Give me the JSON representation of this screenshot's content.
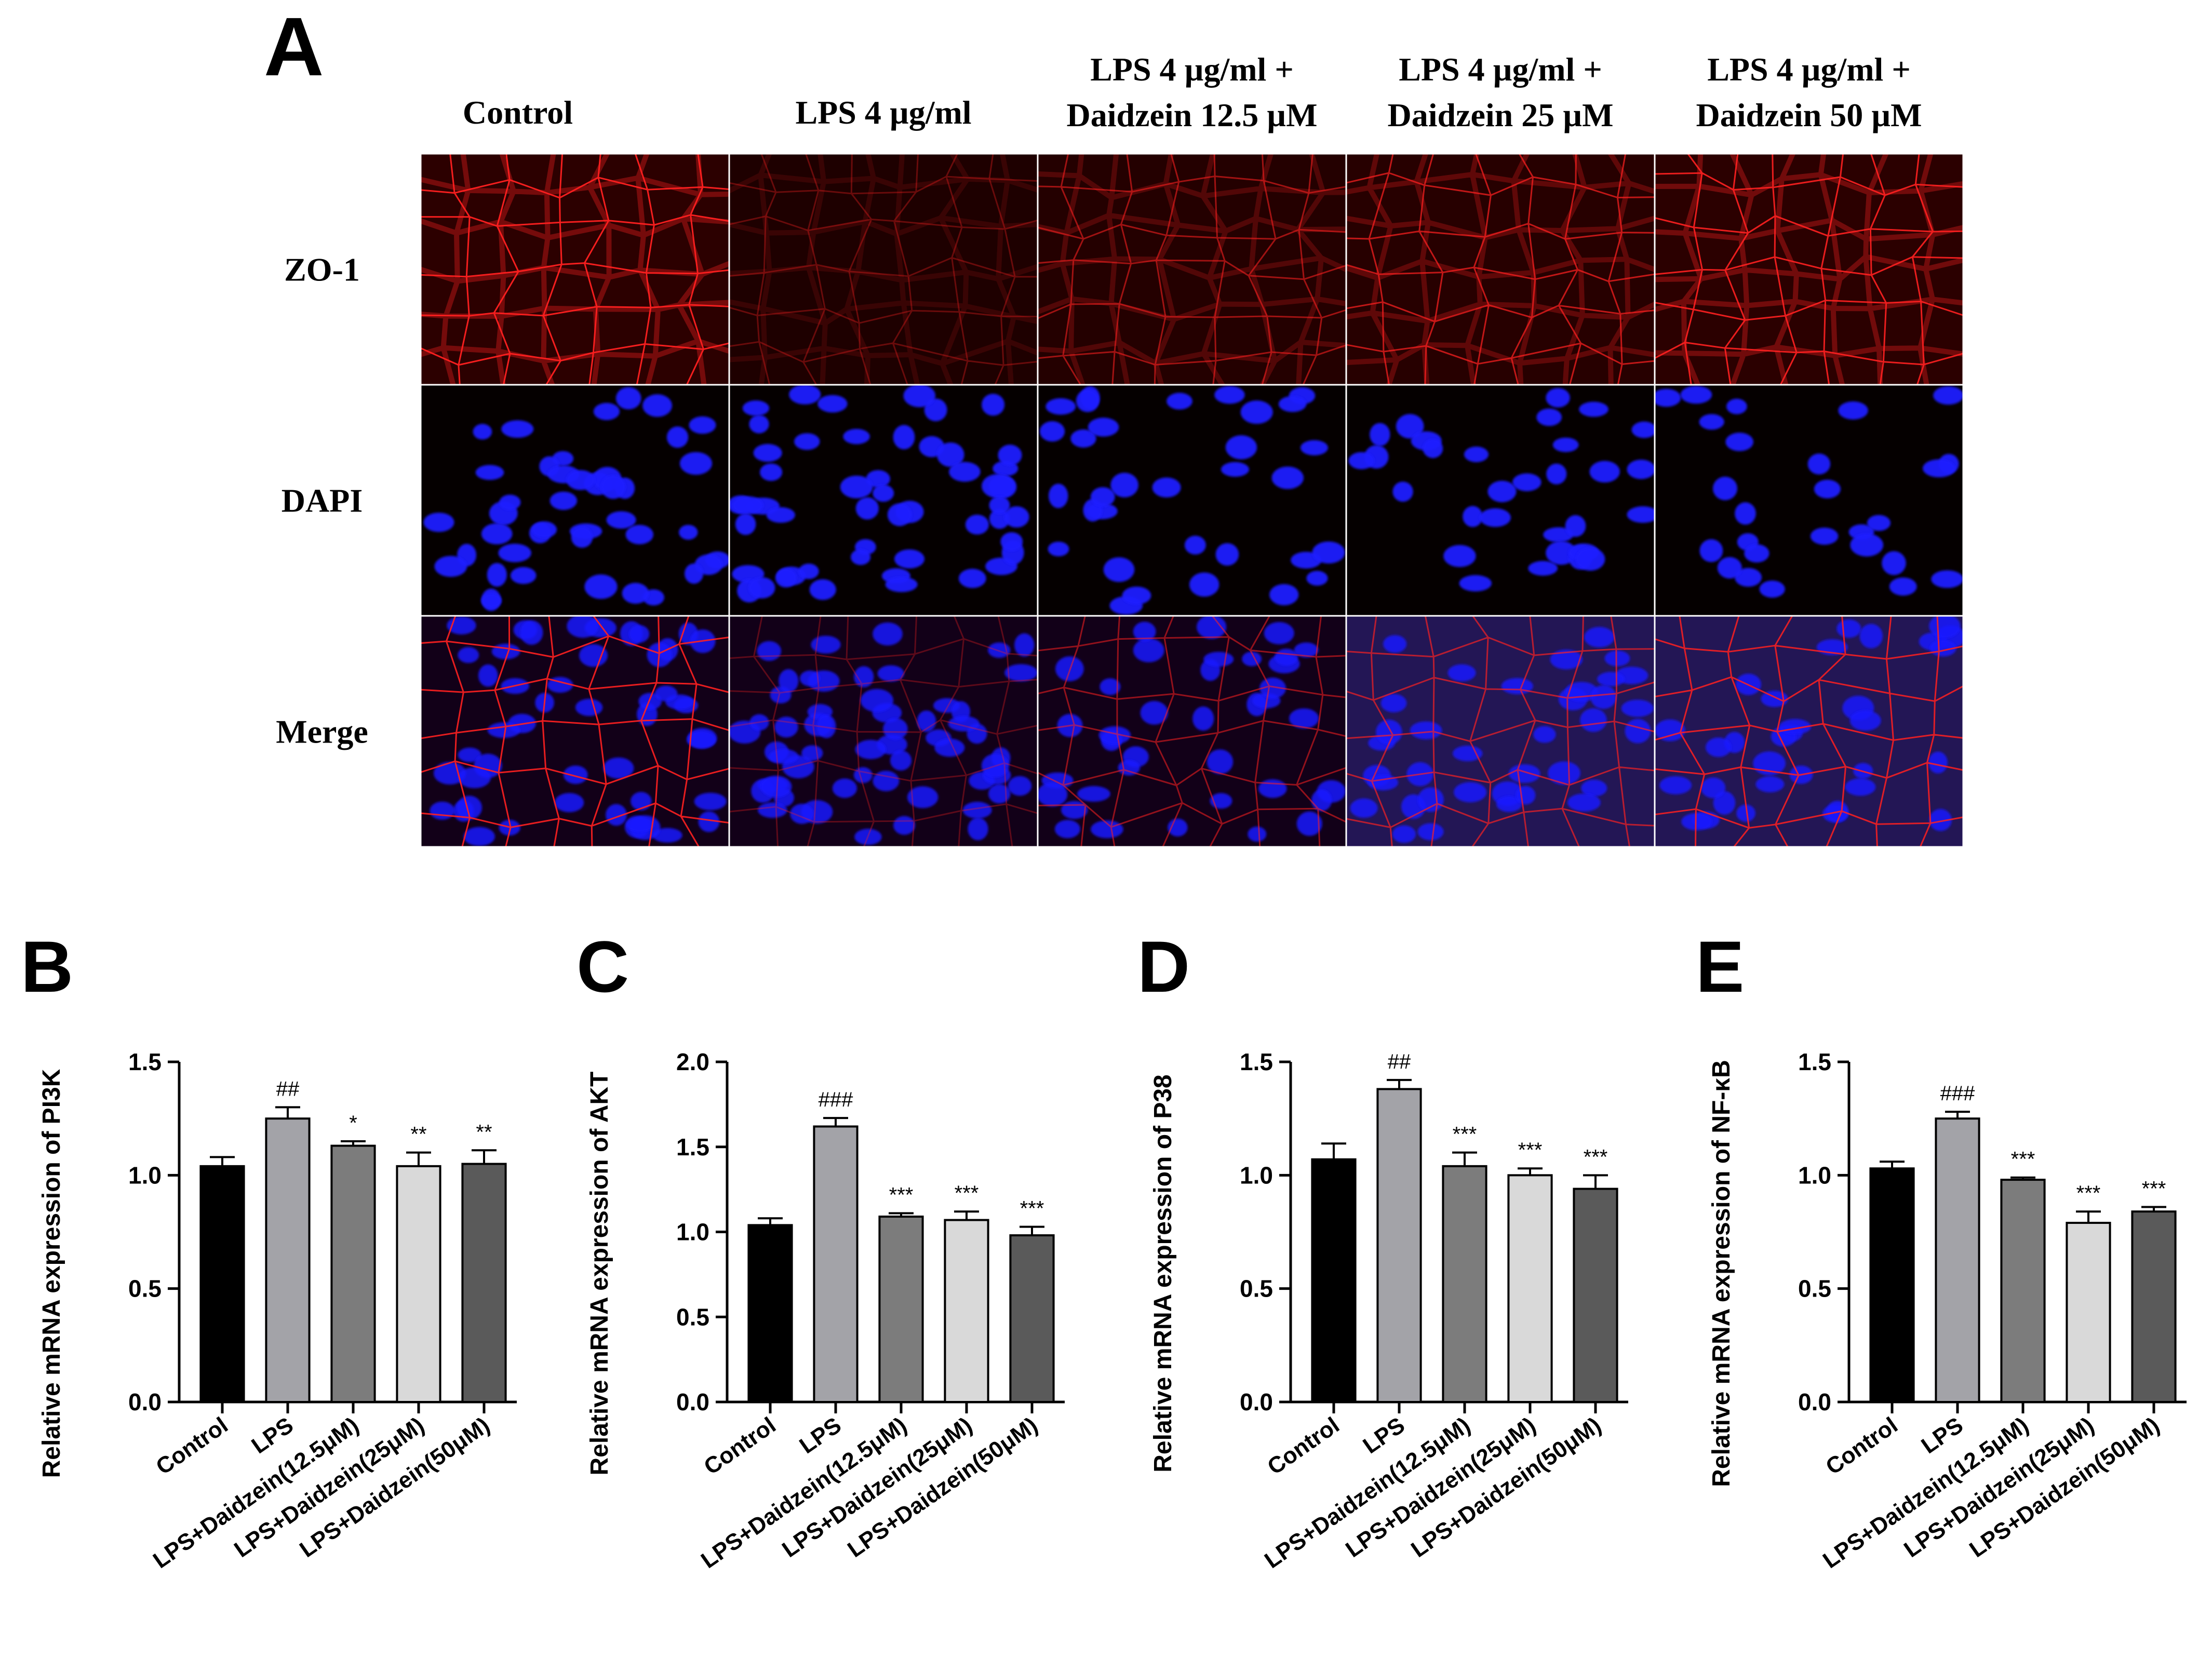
{
  "panel_a": {
    "letter": "A",
    "columns": [
      [
        "Control"
      ],
      [
        "LPS 4 µg/ml"
      ],
      [
        "LPS 4 µg/ml +",
        "Daidzein 12.5 µM"
      ],
      [
        "LPS 4 µg/ml +",
        "Daidzein 25 µM"
      ],
      [
        "LPS 4 µg/ml +",
        "Daidzein 50 µM"
      ]
    ],
    "rows": [
      "ZO-1",
      "DAPI",
      "Merge"
    ],
    "stain_colors": {
      "zo1": "#ff2020",
      "dapi": "#1a1aff",
      "background": "#050000"
    }
  },
  "chart_data": [
    {
      "letter": "B",
      "type": "bar",
      "title": "",
      "ylabel": "Relative mRNA expression of PI3K",
      "categories": [
        "Control",
        "LPS",
        "LPS+Daidzein(12.5μM)",
        "LPS+Daidzein(25μM)",
        "LPS+Daidzein(50μM)"
      ],
      "values": [
        1.04,
        1.25,
        1.13,
        1.04,
        1.05
      ],
      "errors": [
        0.04,
        0.05,
        0.02,
        0.06,
        0.06
      ],
      "significance": [
        "",
        "##",
        "*",
        "**",
        "**"
      ],
      "ylim": [
        0,
        1.5
      ],
      "yticks": [
        0.0,
        0.5,
        1.0,
        1.5
      ],
      "ytick_labels": [
        "0.0",
        "0.5",
        "1.0",
        "1.5"
      ],
      "bar_colors": [
        "#000000",
        "#a3a3a8",
        "#7c7c7c",
        "#d9d9d9",
        "#5a5a5a"
      ]
    },
    {
      "letter": "C",
      "type": "bar",
      "title": "",
      "ylabel": "Relative mRNA expression of AKT",
      "categories": [
        "Control",
        "LPS",
        "LPS+Daidzein(12.5μM)",
        "LPS+Daidzein(25μM)",
        "LPS+Daidzein(50μM)"
      ],
      "values": [
        1.04,
        1.62,
        1.09,
        1.07,
        0.98
      ],
      "errors": [
        0.04,
        0.05,
        0.02,
        0.05,
        0.05
      ],
      "significance": [
        "",
        "###",
        "***",
        "***",
        "***"
      ],
      "ylim": [
        0,
        2.0
      ],
      "yticks": [
        0.0,
        0.5,
        1.0,
        1.5,
        2.0
      ],
      "ytick_labels": [
        "0.0",
        "0.5",
        "1.0",
        "1.5",
        "2.0"
      ],
      "bar_colors": [
        "#000000",
        "#a3a3a8",
        "#7c7c7c",
        "#d9d9d9",
        "#5a5a5a"
      ]
    },
    {
      "letter": "D",
      "type": "bar",
      "title": "",
      "ylabel": "Relative mRNA expression of P38",
      "categories": [
        "Control",
        "LPS",
        "LPS+Daidzein(12.5μM)",
        "LPS+Daidzein(25μM)",
        "LPS+Daidzein(50μM)"
      ],
      "values": [
        1.07,
        1.38,
        1.04,
        1.0,
        0.94
      ],
      "errors": [
        0.07,
        0.04,
        0.06,
        0.03,
        0.06
      ],
      "significance": [
        "",
        "##",
        "***",
        "***",
        "***"
      ],
      "ylim": [
        0,
        1.5
      ],
      "yticks": [
        0.0,
        0.5,
        1.0,
        1.5
      ],
      "ytick_labels": [
        "0.0",
        "0.5",
        "1.0",
        "1.5"
      ],
      "bar_colors": [
        "#000000",
        "#a3a3a8",
        "#7c7c7c",
        "#d9d9d9",
        "#5a5a5a"
      ]
    },
    {
      "letter": "E",
      "type": "bar",
      "title": "",
      "ylabel": "Relative mRNA expression of NF-κB",
      "categories": [
        "Control",
        "LPS",
        "LPS+Daidzein(12.5μM)",
        "LPS+Daidzein(25μM)",
        "LPS+Daidzein(50μM)"
      ],
      "values": [
        1.03,
        1.25,
        0.98,
        0.79,
        0.84
      ],
      "errors": [
        0.03,
        0.03,
        0.01,
        0.05,
        0.02
      ],
      "significance": [
        "",
        "###",
        "***",
        "***",
        "***"
      ],
      "ylim": [
        0,
        1.5
      ],
      "yticks": [
        0.0,
        0.5,
        1.0,
        1.5
      ],
      "ytick_labels": [
        "0.0",
        "0.5",
        "1.0",
        "1.5"
      ],
      "bar_colors": [
        "#000000",
        "#a3a3a8",
        "#7c7c7c",
        "#d9d9d9",
        "#5a5a5a"
      ]
    }
  ]
}
